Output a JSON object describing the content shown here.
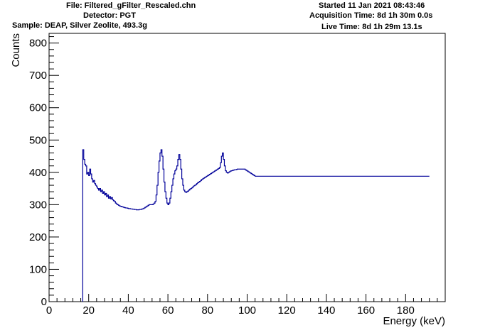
{
  "header": {
    "file": "File: Filtered_gFilter_Rescaled.chn",
    "detector": "Detector: PGT",
    "sample": "Sample: DEAP, Silver Zeolite, 493.3g",
    "started": "Started 11 Jan 2021 08:43:46",
    "acquisition": "Acquisition Time: 8d 1h 30m 0.0s",
    "live": "Live Time: 8d 1h 29m 13.1s"
  },
  "chart_data": {
    "type": "line",
    "style": "step",
    "xlabel": "Energy (keV)",
    "ylabel": "Counts",
    "xlim": [
      0,
      200
    ],
    "ylim": [
      0,
      830
    ],
    "xticks": [
      0,
      20,
      40,
      60,
      80,
      100,
      120,
      140,
      160,
      180
    ],
    "yticks": [
      0,
      100,
      200,
      300,
      400,
      500,
      600,
      700,
      800
    ],
    "grid": false,
    "color": "#000099",
    "series": [
      {
        "bin_width": 0.5,
        "start": 17.0,
        "values": [
          470,
          440,
          425,
          420,
          395,
          400,
          390,
          410,
          395,
          380,
          370,
          375,
          365,
          360,
          355,
          350,
          345,
          350,
          340,
          345,
          335,
          340,
          330,
          335,
          325,
          330,
          320,
          325,
          318,
          322,
          315,
          312,
          310,
          305,
          302,
          300,
          298,
          296,
          295,
          294,
          293,
          292,
          291,
          290,
          290,
          289,
          288,
          288,
          287,
          287,
          286,
          286,
          285,
          285,
          284,
          284,
          284,
          285,
          285,
          286,
          287,
          288,
          290,
          292,
          294,
          296,
          298,
          300,
          300,
          300,
          300,
          302,
          305,
          310,
          330,
          360,
          400,
          435,
          460,
          470,
          450,
          410,
          370,
          340,
          320,
          305,
          300,
          305,
          320,
          340,
          360,
          380,
          395,
          405,
          410,
          420,
          440,
          455,
          440,
          410,
          380,
          360,
          345,
          340,
          338,
          340,
          342,
          345,
          348,
          350,
          352,
          355,
          358,
          360,
          362,
          365,
          368,
          370,
          372,
          375,
          378,
          380,
          382,
          384,
          386,
          388,
          390,
          392,
          394,
          396,
          398,
          400,
          402,
          404,
          406,
          408,
          410,
          412,
          415,
          430,
          450,
          460,
          440,
          420,
          405,
          400,
          398,
          400,
          402,
          404,
          405,
          406,
          407,
          408,
          408,
          409,
          410,
          410,
          410,
          410,
          410,
          410,
          410,
          410,
          408,
          406,
          404,
          402,
          400,
          398,
          396,
          394,
          392,
          390,
          388,
          388,
          388,
          388,
          388,
          388,
          388,
          388,
          388,
          388,
          388,
          388,
          388,
          388,
          388,
          388,
          388,
          388,
          388,
          388,
          388,
          388,
          388,
          388,
          388,
          388,
          388,
          388,
          388,
          388,
          388,
          388,
          388,
          388,
          388,
          388,
          388,
          388,
          388,
          388,
          388,
          388,
          388,
          388,
          388,
          388,
          388,
          388,
          388,
          388,
          388,
          388,
          388,
          388,
          388,
          388,
          388,
          388,
          388,
          388,
          388,
          388,
          388,
          388,
          388,
          388,
          388,
          388,
          388,
          388,
          388,
          388,
          388,
          388,
          388,
          388,
          388,
          388,
          388,
          388,
          388,
          388,
          388,
          388,
          388,
          388,
          388,
          388,
          388,
          388,
          388,
          388,
          388,
          388,
          388,
          388,
          388,
          388,
          388,
          388,
          388,
          388,
          388,
          388,
          388,
          388,
          388,
          388,
          388,
          388,
          388,
          388,
          388,
          388,
          388,
          388,
          388,
          388,
          388,
          388,
          388,
          388,
          388,
          388,
          388,
          388,
          388,
          388,
          388,
          388,
          388,
          388,
          388,
          388,
          388,
          388,
          388,
          388,
          388,
          388,
          388,
          388,
          388,
          388,
          388,
          388,
          388,
          388,
          388,
          388,
          388,
          388,
          388,
          388,
          388,
          388,
          388,
          388,
          388,
          388,
          388,
          388,
          388,
          388,
          388,
          388,
          388,
          388,
          388,
          388,
          388,
          388,
          388,
          388,
          388,
          388
        ]
      }
    ]
  }
}
